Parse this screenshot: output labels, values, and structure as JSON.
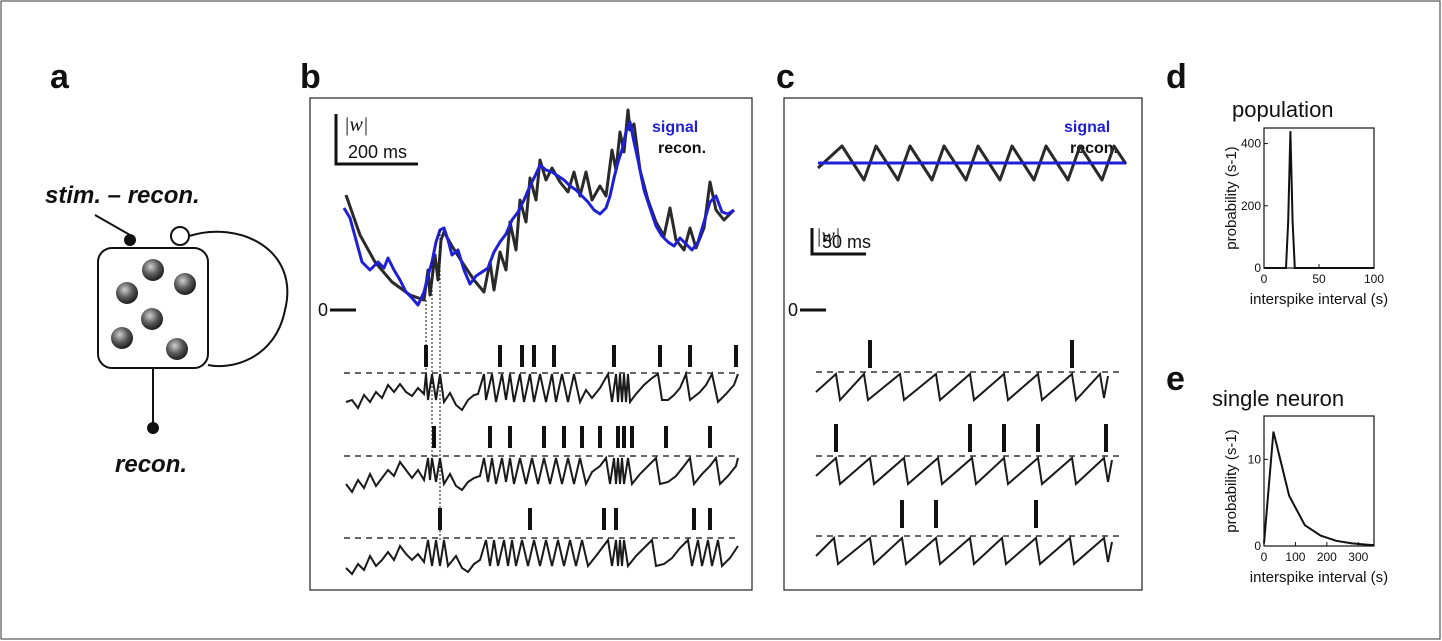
{
  "panels": {
    "a": {
      "letter": "a",
      "stim_minus_recon": "stim. – recon.",
      "recon_bottom": "recon."
    },
    "b": {
      "letter": "b",
      "legend_signal": "signal",
      "legend_recon": "recon.",
      "scale_w": "|w|",
      "scale_time": "200 ms",
      "zero_label": "0"
    },
    "c": {
      "letter": "c",
      "legend_signal": "signal",
      "legend_recon": "recon.",
      "scale_w": "|w|",
      "scale_time": "50 ms",
      "zero_label": "0"
    },
    "d": {
      "letter": "d",
      "title": "population"
    },
    "e": {
      "letter": "e",
      "title": "single neuron"
    }
  },
  "colors": {
    "signal": "#1f1fd6",
    "recon": "#2a2a2a",
    "sphere_dark": "#3a3a3a"
  },
  "chart_data": [
    {
      "id": "d",
      "type": "line",
      "title": "population",
      "xlabel": "interspike interval (s)",
      "ylabel": "probability (s-1)",
      "xlim": [
        0,
        100
      ],
      "ylim": [
        0,
        450
      ],
      "xticks": [
        0,
        50,
        100
      ],
      "yticks": [
        0,
        200,
        400
      ],
      "x": [
        0,
        20,
        22,
        24,
        26,
        28,
        30,
        100
      ],
      "y": [
        0,
        0,
        150,
        440,
        150,
        0,
        0,
        0
      ]
    },
    {
      "id": "e",
      "type": "line",
      "title": "single neuron",
      "xlabel": "interspike interval (s)",
      "ylabel": "probability (s-1)",
      "xlim": [
        0,
        350
      ],
      "ylim": [
        0,
        15
      ],
      "xticks": [
        0,
        100,
        200,
        300
      ],
      "yticks": [
        0,
        10
      ],
      "x": [
        0,
        30,
        80,
        130,
        180,
        230,
        280,
        330,
        350
      ],
      "y": [
        0.3,
        13.2,
        5.8,
        2.4,
        1.2,
        0.6,
        0.3,
        0.15,
        0.1
      ]
    }
  ]
}
